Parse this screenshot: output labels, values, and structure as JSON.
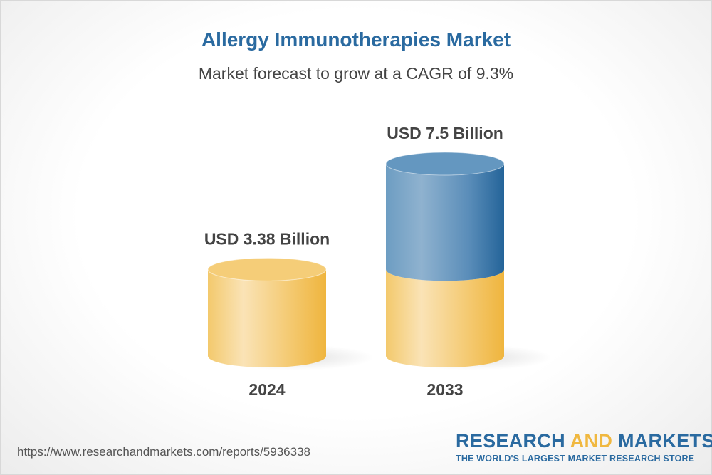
{
  "chart_data": {
    "type": "bar",
    "title": "Allergy Immunotherapies Market",
    "subtitle": "Market forecast to grow at a CAGR of 9.3%",
    "categories": [
      "2024",
      "2033"
    ],
    "values": [
      3.38,
      7.5
    ],
    "data_labels": [
      "USD 3.38 Billion",
      "USD 7.5 Billion"
    ],
    "style": "3d-cylinder",
    "colors": {
      "base": "#f2c25a",
      "growth": "#2a6aa0"
    },
    "grid": false
  },
  "footer": {
    "url": "https://www.researchandmarkets.com/reports/5936338",
    "logo_word1": "RESEARCH",
    "logo_word2": "AND",
    "logo_word3": "MARKETS",
    "logo_tagline": "THE WORLD'S LARGEST MARKET RESEARCH STORE"
  }
}
